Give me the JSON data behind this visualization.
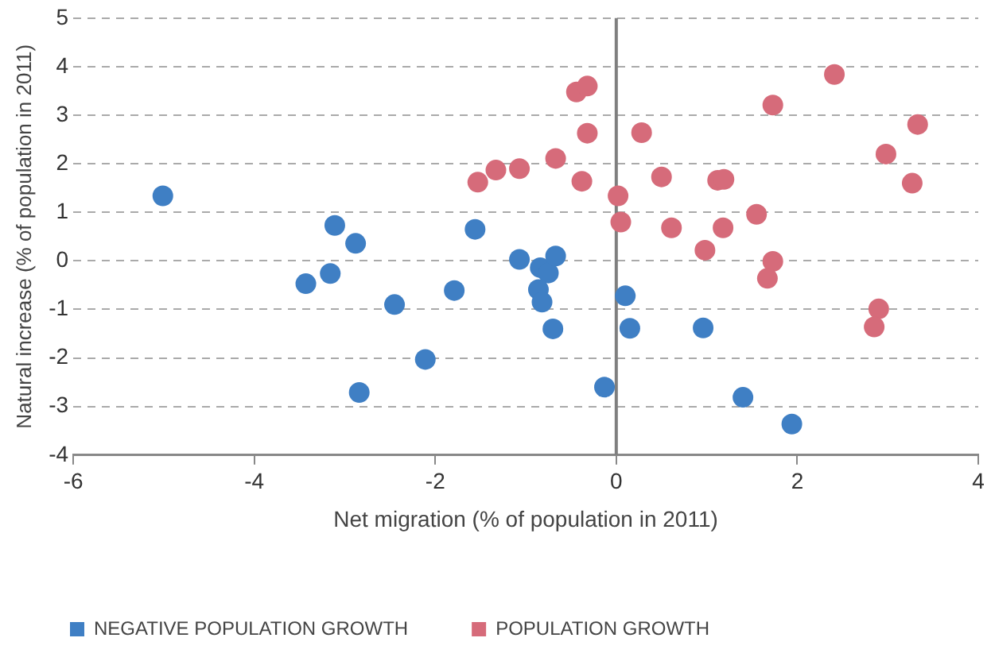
{
  "chart_data": {
    "type": "scatter",
    "xlabel": "Net migration (% of population in 2011)",
    "ylabel": "Natural increase (% of population in 2011)",
    "xlim": [
      -6,
      4
    ],
    "xticks": [
      -6,
      -4,
      -2,
      0,
      2,
      4
    ],
    "ylim": [
      -4,
      5
    ],
    "yticks": [
      -4,
      -3,
      -2,
      -1,
      0,
      1,
      2,
      3,
      4,
      5
    ],
    "grid": "y",
    "legend": "bottom",
    "marker": "circle",
    "ref_lines": [
      {
        "axis": "x",
        "value": 0,
        "color": "#7f7f7f"
      }
    ],
    "series": [
      {
        "name": "NEGATIVE POPULATION GROWTH",
        "color": "#3f7fc4",
        "x": [
          -5.01,
          -3.11,
          -2.88,
          -3.43,
          -3.16,
          -2.45,
          -2.84,
          -2.11,
          -1.79,
          -1.56,
          -1.07,
          -0.84,
          -0.75,
          -0.67,
          -0.86,
          -0.82,
          -0.7,
          0.1,
          0.15,
          0.96,
          -0.13,
          1.4,
          1.94
        ],
        "values": [
          1.34,
          0.73,
          0.36,
          -0.47,
          -0.26,
          -0.9,
          -2.71,
          -2.03,
          -0.61,
          0.65,
          0.03,
          -0.14,
          -0.25,
          0.1,
          -0.59,
          -0.85,
          -1.4,
          -0.72,
          -1.39,
          -1.38,
          -2.6,
          -2.81,
          -3.36
        ]
      },
      {
        "name": "POPULATION GROWTH",
        "color": "#d66b7a",
        "x": [
          -1.53,
          -1.33,
          -1.07,
          -0.44,
          -0.32,
          -0.32,
          0.28,
          -0.67,
          -0.38,
          0.02,
          0.05,
          0.5,
          0.61,
          1.12,
          1.19,
          1.18,
          1.55,
          0.98,
          1.73,
          1.67,
          1.73,
          2.41,
          2.98,
          3.33,
          3.27,
          2.9,
          2.85
        ],
        "values": [
          1.62,
          1.87,
          1.9,
          3.48,
          3.6,
          2.63,
          2.64,
          2.11,
          1.64,
          1.34,
          0.8,
          1.73,
          0.68,
          1.66,
          1.68,
          0.68,
          0.96,
          0.22,
          -0.01,
          -0.36,
          3.21,
          3.84,
          2.2,
          2.81,
          1.6,
          -0.99,
          -1.36
        ]
      }
    ]
  }
}
